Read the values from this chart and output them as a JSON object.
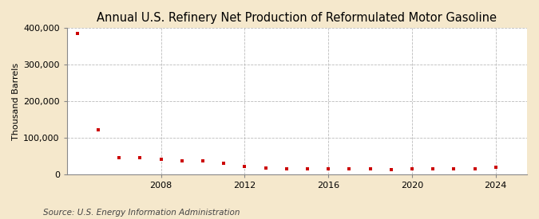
{
  "title": "Annual U.S. Refinery Net Production of Reformulated Motor Gasoline",
  "ylabel": "Thousand Barrels",
  "source": "Source: U.S. Energy Information Administration",
  "figure_bg_color": "#f5e8cc",
  "plot_bg_color": "#ffffff",
  "point_color": "#cc0000",
  "grid_color": "#aaaaaa",
  "ylim": [
    0,
    400000
  ],
  "yticks": [
    0,
    100000,
    200000,
    300000,
    400000
  ],
  "ytick_labels": [
    "0",
    "100,000",
    "200,000",
    "300,000",
    "400,000"
  ],
  "years": [
    2004,
    2005,
    2006,
    2007,
    2008,
    2009,
    2010,
    2011,
    2012,
    2013,
    2014,
    2015,
    2016,
    2017,
    2018,
    2019,
    2020,
    2021,
    2022,
    2023,
    2024
  ],
  "values": [
    385000,
    122000,
    46000,
    46000,
    42000,
    37000,
    36000,
    31000,
    22000,
    18000,
    16000,
    16000,
    16000,
    16000,
    15000,
    12000,
    16000,
    16000,
    16000,
    16000,
    20000
  ],
  "xlim": [
    2003.5,
    2025.5
  ],
  "xticks": [
    2008,
    2012,
    2016,
    2020,
    2024
  ],
  "title_fontsize": 10.5,
  "label_fontsize": 8,
  "tick_fontsize": 8,
  "source_fontsize": 7.5
}
